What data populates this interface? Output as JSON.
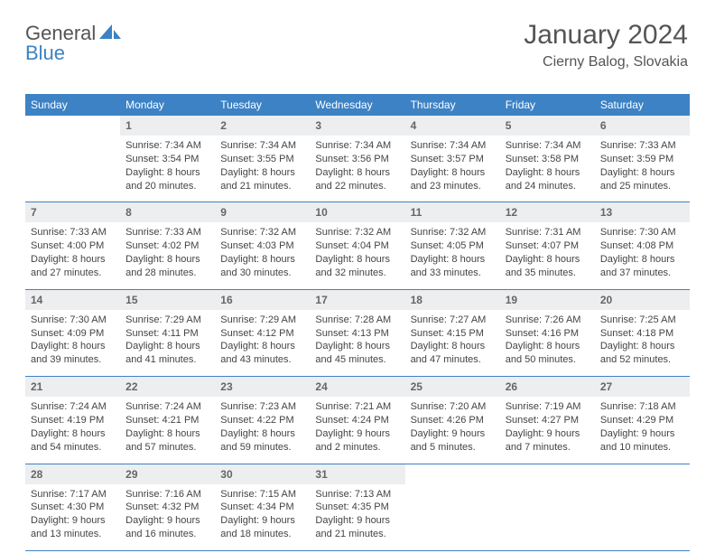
{
  "brand": {
    "part1": "General",
    "part2": "Blue",
    "icon_color": "#3d82c4"
  },
  "title": "January 2024",
  "location": "Cierny Balog, Slovakia",
  "colors": {
    "header_bg": "#3d82c4",
    "header_text": "#ffffff",
    "daynum_bg": "#eceeef",
    "daynum_text": "#666666",
    "body_text": "#444444",
    "border": "#3d82c4",
    "page_bg": "#ffffff"
  },
  "calendar": {
    "type": "table",
    "columns": [
      "Sunday",
      "Monday",
      "Tuesday",
      "Wednesday",
      "Thursday",
      "Friday",
      "Saturday"
    ],
    "start_offset": 1,
    "days": [
      {
        "n": 1,
        "sunrise": "7:34 AM",
        "sunset": "3:54 PM",
        "daylight": "8 hours and 20 minutes."
      },
      {
        "n": 2,
        "sunrise": "7:34 AM",
        "sunset": "3:55 PM",
        "daylight": "8 hours and 21 minutes."
      },
      {
        "n": 3,
        "sunrise": "7:34 AM",
        "sunset": "3:56 PM",
        "daylight": "8 hours and 22 minutes."
      },
      {
        "n": 4,
        "sunrise": "7:34 AM",
        "sunset": "3:57 PM",
        "daylight": "8 hours and 23 minutes."
      },
      {
        "n": 5,
        "sunrise": "7:34 AM",
        "sunset": "3:58 PM",
        "daylight": "8 hours and 24 minutes."
      },
      {
        "n": 6,
        "sunrise": "7:33 AM",
        "sunset": "3:59 PM",
        "daylight": "8 hours and 25 minutes."
      },
      {
        "n": 7,
        "sunrise": "7:33 AM",
        "sunset": "4:00 PM",
        "daylight": "8 hours and 27 minutes."
      },
      {
        "n": 8,
        "sunrise": "7:33 AM",
        "sunset": "4:02 PM",
        "daylight": "8 hours and 28 minutes."
      },
      {
        "n": 9,
        "sunrise": "7:32 AM",
        "sunset": "4:03 PM",
        "daylight": "8 hours and 30 minutes."
      },
      {
        "n": 10,
        "sunrise": "7:32 AM",
        "sunset": "4:04 PM",
        "daylight": "8 hours and 32 minutes."
      },
      {
        "n": 11,
        "sunrise": "7:32 AM",
        "sunset": "4:05 PM",
        "daylight": "8 hours and 33 minutes."
      },
      {
        "n": 12,
        "sunrise": "7:31 AM",
        "sunset": "4:07 PM",
        "daylight": "8 hours and 35 minutes."
      },
      {
        "n": 13,
        "sunrise": "7:30 AM",
        "sunset": "4:08 PM",
        "daylight": "8 hours and 37 minutes."
      },
      {
        "n": 14,
        "sunrise": "7:30 AM",
        "sunset": "4:09 PM",
        "daylight": "8 hours and 39 minutes."
      },
      {
        "n": 15,
        "sunrise": "7:29 AM",
        "sunset": "4:11 PM",
        "daylight": "8 hours and 41 minutes."
      },
      {
        "n": 16,
        "sunrise": "7:29 AM",
        "sunset": "4:12 PM",
        "daylight": "8 hours and 43 minutes."
      },
      {
        "n": 17,
        "sunrise": "7:28 AM",
        "sunset": "4:13 PM",
        "daylight": "8 hours and 45 minutes."
      },
      {
        "n": 18,
        "sunrise": "7:27 AM",
        "sunset": "4:15 PM",
        "daylight": "8 hours and 47 minutes."
      },
      {
        "n": 19,
        "sunrise": "7:26 AM",
        "sunset": "4:16 PM",
        "daylight": "8 hours and 50 minutes."
      },
      {
        "n": 20,
        "sunrise": "7:25 AM",
        "sunset": "4:18 PM",
        "daylight": "8 hours and 52 minutes."
      },
      {
        "n": 21,
        "sunrise": "7:24 AM",
        "sunset": "4:19 PM",
        "daylight": "8 hours and 54 minutes."
      },
      {
        "n": 22,
        "sunrise": "7:24 AM",
        "sunset": "4:21 PM",
        "daylight": "8 hours and 57 minutes."
      },
      {
        "n": 23,
        "sunrise": "7:23 AM",
        "sunset": "4:22 PM",
        "daylight": "8 hours and 59 minutes."
      },
      {
        "n": 24,
        "sunrise": "7:21 AM",
        "sunset": "4:24 PM",
        "daylight": "9 hours and 2 minutes."
      },
      {
        "n": 25,
        "sunrise": "7:20 AM",
        "sunset": "4:26 PM",
        "daylight": "9 hours and 5 minutes."
      },
      {
        "n": 26,
        "sunrise": "7:19 AM",
        "sunset": "4:27 PM",
        "daylight": "9 hours and 7 minutes."
      },
      {
        "n": 27,
        "sunrise": "7:18 AM",
        "sunset": "4:29 PM",
        "daylight": "9 hours and 10 minutes."
      },
      {
        "n": 28,
        "sunrise": "7:17 AM",
        "sunset": "4:30 PM",
        "daylight": "9 hours and 13 minutes."
      },
      {
        "n": 29,
        "sunrise": "7:16 AM",
        "sunset": "4:32 PM",
        "daylight": "9 hours and 16 minutes."
      },
      {
        "n": 30,
        "sunrise": "7:15 AM",
        "sunset": "4:34 PM",
        "daylight": "9 hours and 18 minutes."
      },
      {
        "n": 31,
        "sunrise": "7:13 AM",
        "sunset": "4:35 PM",
        "daylight": "9 hours and 21 minutes."
      }
    ],
    "labels": {
      "sunrise": "Sunrise:",
      "sunset": "Sunset:",
      "daylight": "Daylight:"
    }
  }
}
